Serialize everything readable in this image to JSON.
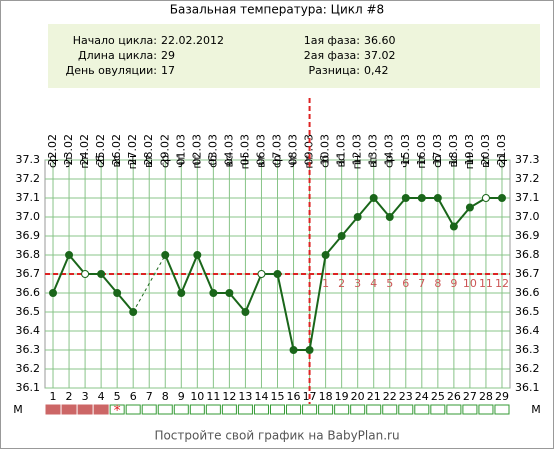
{
  "chart_data": {
    "type": "line",
    "title": "Базальная температура: Цикл #8",
    "info": [
      {
        "label": "Начало цикла:",
        "value": "22.02.2012"
      },
      {
        "label": "Длина цикла:",
        "value": 29
      },
      {
        "label": "День овуляции:",
        "value": 17
      },
      {
        "label": "1ая фаза:",
        "value": "36.60"
      },
      {
        "label": "2ая фаза:",
        "value": "37.02"
      },
      {
        "label": "Разница:",
        "value": "0,42"
      }
    ],
    "x": [
      1,
      2,
      3,
      4,
      5,
      6,
      7,
      8,
      9,
      10,
      11,
      12,
      13,
      14,
      15,
      16,
      17,
      18,
      19,
      20,
      21,
      22,
      23,
      24,
      25,
      26,
      27,
      28,
      29
    ],
    "xlim": [
      0.5,
      29.5
    ],
    "weekdays": [
      "ср",
      "чт",
      "пт",
      "сб",
      "вс",
      "пн",
      "вт",
      "ср",
      "чт",
      "пт",
      "сб",
      "вс",
      "пн",
      "вт",
      "ср",
      "чт",
      "пт",
      "сб",
      "вс",
      "пн",
      "вт",
      "ср",
      "чт",
      "пт",
      "сб",
      "вс",
      "пн",
      "вт",
      "ср"
    ],
    "dates": [
      "22.02",
      "23.02",
      "24.02",
      "25.02",
      "26.02",
      "27.02",
      "28.02",
      "29.02",
      "01.03",
      "02.03",
      "03.03",
      "04.03",
      "05.03",
      "06.03",
      "07.03",
      "08.03",
      "09.03",
      "10.03",
      "11.03",
      "12.03",
      "13.03",
      "14.03",
      "15.03",
      "16.03",
      "17.03",
      "18.03",
      "19.03",
      "20.03",
      "21.03"
    ],
    "series": [
      {
        "name": "Базальная температура",
        "color": "#1a661a",
        "values": [
          36.6,
          36.8,
          36.7,
          36.7,
          36.6,
          36.5,
          null,
          36.8,
          36.6,
          36.8,
          36.6,
          36.6,
          36.5,
          36.7,
          36.7,
          36.3,
          36.3,
          36.8,
          36.9,
          37.0,
          37.1,
          37.0,
          37.1,
          37.1,
          37.1,
          36.95,
          37.05,
          37.1,
          37.1
        ]
      }
    ],
    "open_marker_days": [
      3,
      14,
      28
    ],
    "coverline": 36.7,
    "luteal_days": [
      1,
      2,
      3,
      4,
      5,
      6,
      7,
      8,
      9,
      10,
      11,
      12
    ],
    "ylim": [
      36.1,
      37.3
    ],
    "yticks": [
      36.1,
      36.2,
      36.3,
      36.4,
      36.5,
      36.6,
      36.7,
      36.8,
      36.9,
      {
        "value": 37,
        "label": "37.0"
      },
      37.1,
      37.2,
      37.3
    ],
    "grid": true,
    "row_label": "М",
    "period_days": [
      1,
      2,
      3,
      4
    ],
    "star": {
      "day": 5,
      "label": "*"
    },
    "footer": "Постройте свой график на BabyPlan.ru"
  }
}
